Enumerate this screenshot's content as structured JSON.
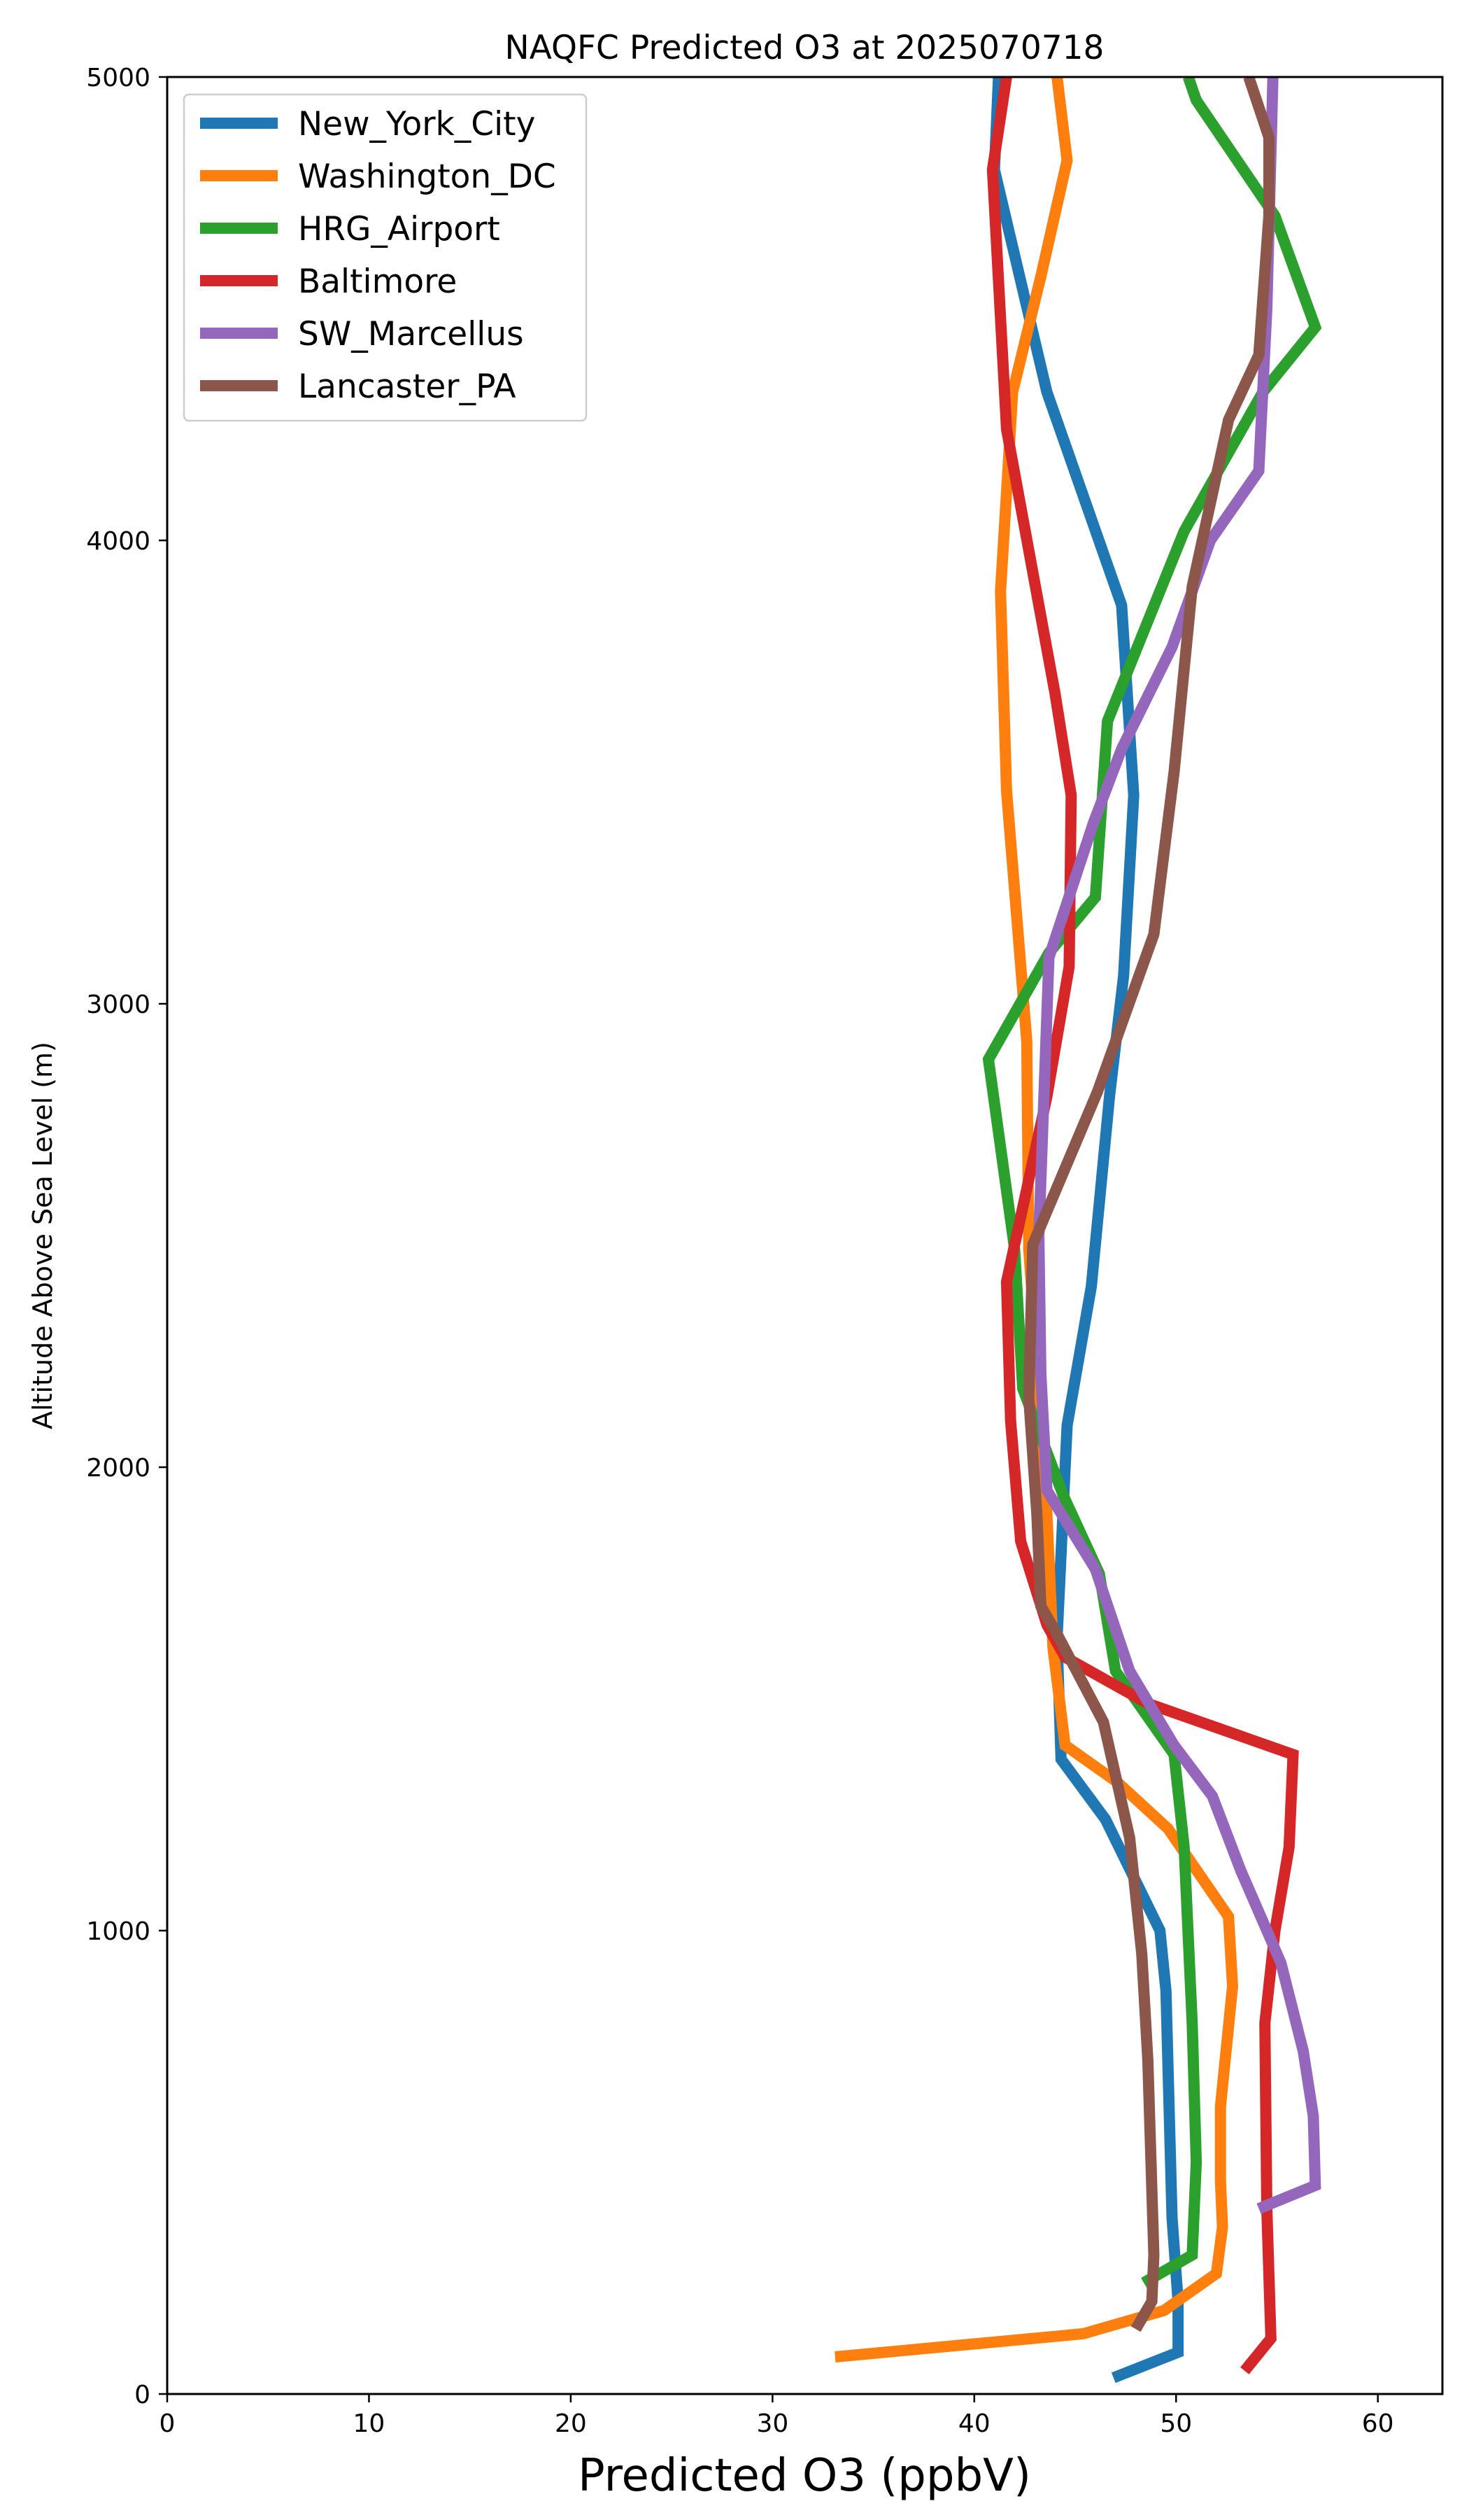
{
  "chart_data": {
    "type": "line",
    "title": "NAQFC Predicted O3 at 2025070718",
    "xlabel": "Predicted O3 (ppbV)",
    "ylabel": "Altitude Above Sea Level (m)",
    "xlim": [
      0,
      63.2
    ],
    "ylim": [
      0,
      5000
    ],
    "xticks": [
      0,
      10,
      20,
      30,
      40,
      50,
      60
    ],
    "yticks": [
      0,
      1000,
      2000,
      3000,
      4000,
      5000
    ],
    "legend_position": "top-left",
    "series": [
      {
        "name": "New_York_City",
        "color": "#1f77b4",
        "points": [
          [
            46.9,
            35
          ],
          [
            50.1,
            90
          ],
          [
            50.1,
            200
          ],
          [
            49.8,
            380
          ],
          [
            49.5,
            870
          ],
          [
            49.2,
            1000
          ],
          [
            46.5,
            1240
          ],
          [
            44.3,
            1370
          ],
          [
            44.1,
            1630
          ],
          [
            44.6,
            2090
          ],
          [
            45.8,
            2390
          ],
          [
            46.7,
            2800
          ],
          [
            47.4,
            3060
          ],
          [
            47.9,
            3450
          ],
          [
            47.3,
            3860
          ],
          [
            43.6,
            4320
          ],
          [
            41.0,
            4800
          ],
          [
            41.2,
            5000
          ]
        ]
      },
      {
        "name": "Washington_DC",
        "color": "#ff7f0e",
        "points": [
          [
            33.1,
            80
          ],
          [
            45.4,
            130
          ],
          [
            49.4,
            180
          ],
          [
            52.0,
            260
          ],
          [
            52.3,
            360
          ],
          [
            52.2,
            460
          ],
          [
            52.2,
            620
          ],
          [
            52.8,
            880
          ],
          [
            52.6,
            1030
          ],
          [
            49.6,
            1220
          ],
          [
            47.1,
            1320
          ],
          [
            44.5,
            1400
          ],
          [
            43.9,
            1610
          ],
          [
            43.5,
            1990
          ],
          [
            42.7,
            2470
          ],
          [
            42.6,
            2920
          ],
          [
            41.6,
            3460
          ],
          [
            41.3,
            3890
          ],
          [
            41.9,
            4320
          ],
          [
            43.3,
            4570
          ],
          [
            44.6,
            4820
          ],
          [
            44.1,
            5000
          ]
        ]
      },
      {
        "name": "HRG_Airport",
        "color": "#2ca02c",
        "points": [
          [
            48.4,
            240
          ],
          [
            50.8,
            300
          ],
          [
            51.0,
            500
          ],
          [
            50.8,
            800
          ],
          [
            50.4,
            1180
          ],
          [
            49.9,
            1380
          ],
          [
            47.0,
            1560
          ],
          [
            46.2,
            1770
          ],
          [
            44.4,
            1940
          ],
          [
            42.4,
            2170
          ],
          [
            42.0,
            2470
          ],
          [
            40.7,
            2880
          ],
          [
            43.7,
            3110
          ],
          [
            46.0,
            3230
          ],
          [
            46.6,
            3610
          ],
          [
            50.4,
            4020
          ],
          [
            54.3,
            4320
          ],
          [
            56.9,
            4460
          ],
          [
            54.9,
            4700
          ],
          [
            51.0,
            4950
          ],
          [
            50.6,
            5000
          ]
        ]
      },
      {
        "name": "Baltimore",
        "color": "#d62728",
        "points": [
          [
            53.4,
            50
          ],
          [
            54.7,
            120
          ],
          [
            54.5,
            400
          ],
          [
            54.4,
            800
          ],
          [
            54.9,
            1000
          ],
          [
            55.6,
            1180
          ],
          [
            55.8,
            1380
          ],
          [
            48.6,
            1490
          ],
          [
            44.5,
            1590
          ],
          [
            43.6,
            1660
          ],
          [
            42.3,
            1840
          ],
          [
            41.8,
            2100
          ],
          [
            41.6,
            2400
          ],
          [
            43.6,
            2800
          ],
          [
            44.7,
            3080
          ],
          [
            44.8,
            3450
          ],
          [
            44.0,
            3670
          ],
          [
            43.2,
            3860
          ],
          [
            41.6,
            4240
          ],
          [
            40.9,
            4800
          ],
          [
            41.6,
            5000
          ]
        ]
      },
      {
        "name": "SW_Marcellus",
        "color": "#9467bd",
        "points": [
          [
            54.1,
            400
          ],
          [
            56.9,
            450
          ],
          [
            56.8,
            600
          ],
          [
            56.3,
            740
          ],
          [
            55.2,
            930
          ],
          [
            53.2,
            1130
          ],
          [
            51.8,
            1290
          ],
          [
            49.9,
            1400
          ],
          [
            47.7,
            1560
          ],
          [
            46.0,
            1780
          ],
          [
            43.6,
            1950
          ],
          [
            43.3,
            2200
          ],
          [
            43.2,
            2500
          ],
          [
            43.7,
            3100
          ],
          [
            45.9,
            3390
          ],
          [
            47.3,
            3550
          ],
          [
            49.8,
            3770
          ],
          [
            51.7,
            4000
          ],
          [
            54.1,
            4150
          ],
          [
            54.5,
            4500
          ],
          [
            54.8,
            5000
          ]
        ]
      },
      {
        "name": "Lancaster_PA",
        "color": "#8c564b",
        "points": [
          [
            48.0,
            140
          ],
          [
            48.8,
            200
          ],
          [
            48.9,
            300
          ],
          [
            48.6,
            720
          ],
          [
            48.3,
            950
          ],
          [
            47.7,
            1200
          ],
          [
            46.4,
            1450
          ],
          [
            44.1,
            1640
          ],
          [
            43.3,
            1700
          ],
          [
            43.1,
            1900
          ],
          [
            42.7,
            2150
          ],
          [
            42.9,
            2480
          ],
          [
            46.1,
            2810
          ],
          [
            48.9,
            3150
          ],
          [
            49.9,
            3500
          ],
          [
            50.8,
            3900
          ],
          [
            52.6,
            4260
          ],
          [
            54.1,
            4400
          ],
          [
            54.6,
            4700
          ],
          [
            54.6,
            4870
          ],
          [
            53.6,
            5000
          ]
        ]
      }
    ]
  }
}
